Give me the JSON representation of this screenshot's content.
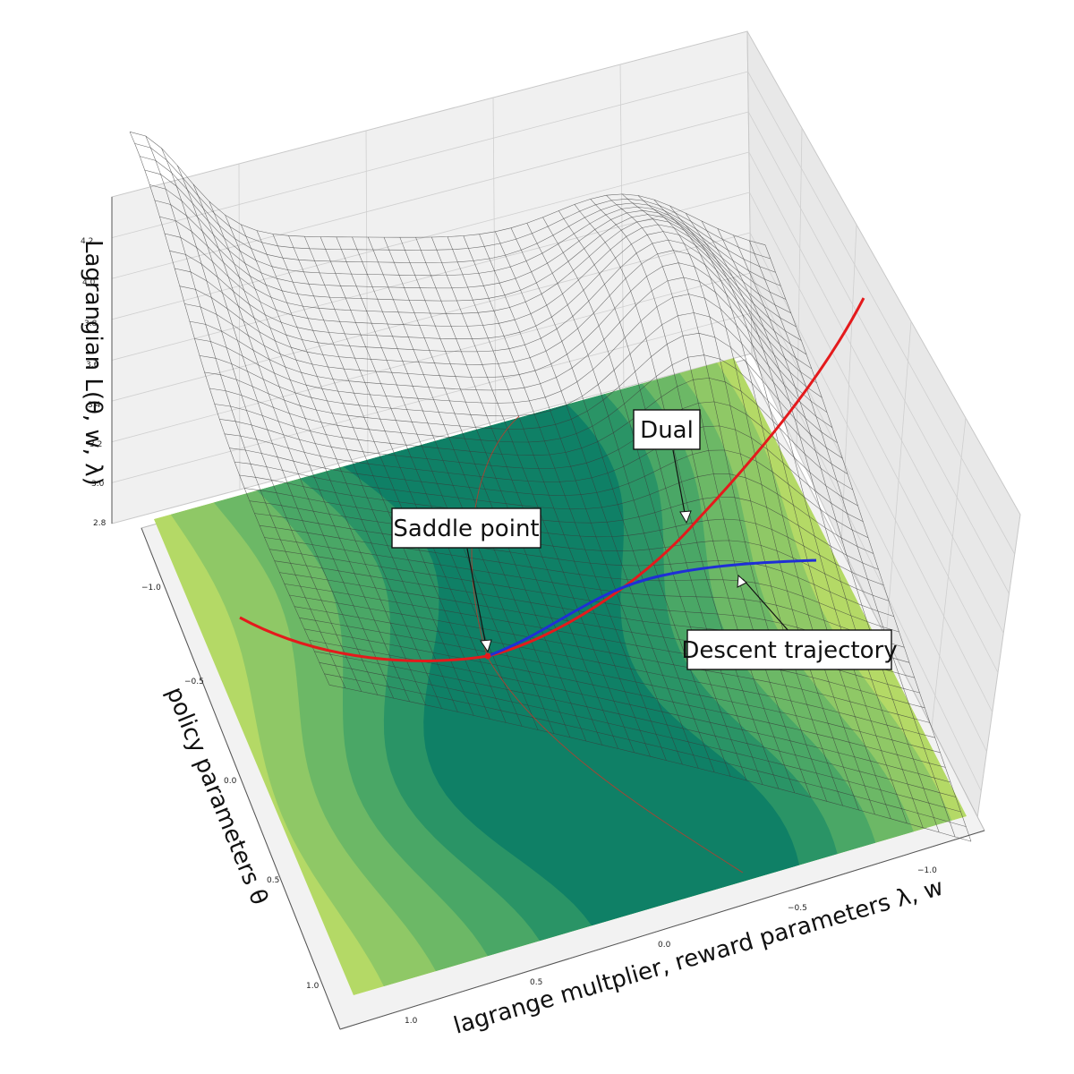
{
  "chart_data": {
    "type": "surface3d",
    "title": "",
    "axes": {
      "x": {
        "label": "lagrange multplier, reward parameters λ, w",
        "ticks": [
          "−1.0",
          "−0.5",
          "0.0",
          "0.5",
          "1.0"
        ],
        "range": [
          -1.2,
          1.2
        ]
      },
      "y": {
        "label": "policy parameters θ",
        "ticks": [
          "−1.0",
          "−0.5",
          "0.0",
          "0.5",
          "1.0"
        ],
        "range": [
          -1.2,
          1.2
        ]
      },
      "z": {
        "label": "Lagrangian L(θ, w, λ)",
        "ticks": [
          "2.8",
          "3.0",
          "3.2",
          "3.4",
          "3.6",
          "3.8",
          "4.0",
          "4.2"
        ],
        "range": [
          2.8,
          4.2
        ]
      }
    },
    "grid": true,
    "surface": {
      "style": "wireframe",
      "color": "#555555"
    },
    "contour_floor": {
      "colormap": "summer",
      "colors": [
        "#0f8066",
        "#2a9466",
        "#4aa766",
        "#6cb866",
        "#8fc866",
        "#b4d966",
        "#dfee66"
      ]
    },
    "series": [
      {
        "name": "Dual",
        "color": "#e41a1c"
      },
      {
        "name": "Descent trajectory",
        "color": "#1f2fd6"
      }
    ],
    "annotations": [
      {
        "text": "Saddle point"
      },
      {
        "text": "Dual"
      },
      {
        "text": "Descent trajectory"
      }
    ]
  }
}
